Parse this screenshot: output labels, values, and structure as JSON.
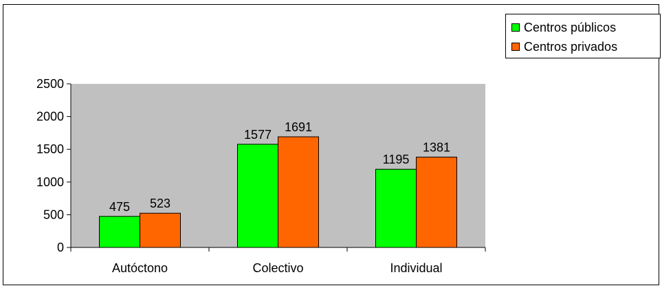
{
  "colors": {
    "plot_bg": "#c0c0c0",
    "series_publicos": "#00ff00",
    "series_privados": "#ff6600",
    "axis": "#000000"
  },
  "chart_data": {
    "type": "bar",
    "categories": [
      "Autóctono",
      "Colectivo",
      "Individual"
    ],
    "series": [
      {
        "name": "Centros públicos",
        "values": [
          475,
          1577,
          1195
        ]
      },
      {
        "name": "Centros privados",
        "values": [
          523,
          1691,
          1381
        ]
      }
    ],
    "yticks": [
      0,
      500,
      1000,
      1500,
      2000,
      2500
    ],
    "ylim": [
      0,
      2500
    ],
    "grid": false,
    "legend": "top-right",
    "title": "",
    "xlabel": "",
    "ylabel": ""
  }
}
